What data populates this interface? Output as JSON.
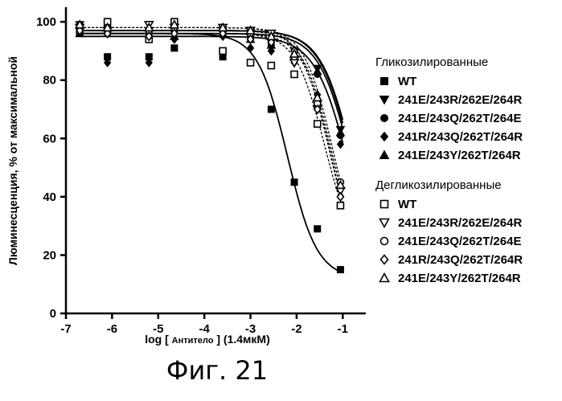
{
  "caption": "Фиг. 21",
  "chart_data": {
    "type": "scatter",
    "title": "",
    "xlabel_main": "log [ ",
    "xlabel_small": "Антитело",
    "xlabel_end": " ] (1.4мкМ)",
    "ylabel": "Люминесценция, % от максимальной",
    "xlim": [
      -7,
      -0.5
    ],
    "ylim": [
      0,
      105
    ],
    "xticks": [
      -7,
      -6,
      -5,
      -4,
      -3,
      -2,
      -1
    ],
    "xtick_labels": [
      "-7",
      "-6",
      "-5",
      "-4",
      "-3",
      "-2",
      "-1"
    ],
    "yticks": [
      0,
      20,
      40,
      60,
      80,
      100
    ],
    "ytick_labels": [
      "0",
      "20",
      "40",
      "60",
      "80",
      "100"
    ],
    "groups": [
      {
        "title": "Гликозилированные",
        "filled": true
      },
      {
        "title": "Дегликозилированные",
        "filled": false
      }
    ],
    "series": [
      {
        "name": "WT",
        "group": 0,
        "marker": "square",
        "filled": true,
        "line": "solid",
        "x": [
          -6.7,
          -6.1,
          -5.2,
          -4.65,
          -3.6,
          -3.0,
          -2.55,
          -2.05,
          -1.55,
          -1.05
        ],
        "y": [
          96,
          88,
          88,
          91,
          88,
          86,
          70,
          45,
          29,
          15
        ],
        "fit": {
          "top": 96,
          "bottom": 12,
          "ec50": -2.2,
          "hill": 1.35
        }
      },
      {
        "name": "241E/243R/262E/264R",
        "group": 0,
        "marker": "triangle-down",
        "filled": true,
        "line": "solid",
        "x": [
          -6.7,
          -6.1,
          -5.2,
          -4.65,
          -3.6,
          -3.0,
          -2.55,
          -2.05,
          -1.55,
          -1.05
        ],
        "y": [
          99,
          96,
          97,
          96,
          97,
          96,
          93,
          90,
          84,
          63
        ],
        "fit": {
          "top": 97,
          "bottom": 0,
          "ec50": -0.72,
          "hill": 1.2
        }
      },
      {
        "name": "241E/243Q/262T/264E",
        "group": 0,
        "marker": "circle",
        "filled": true,
        "line": "solid",
        "x": [
          -6.7,
          -6.1,
          -5.2,
          -4.65,
          -3.6,
          -3.0,
          -2.55,
          -2.05,
          -1.55,
          -1.05
        ],
        "y": [
          98,
          96,
          97,
          97,
          97,
          95,
          92,
          88,
          82,
          61
        ],
        "fit": {
          "top": 97,
          "bottom": 0,
          "ec50": -0.74,
          "hill": 1.2
        }
      },
      {
        "name": "241R/243Q/262T/264R",
        "group": 0,
        "marker": "diamond",
        "filled": true,
        "line": "solid",
        "x": [
          -6.7,
          -6.1,
          -5.2,
          -4.65,
          -3.6,
          -3.0,
          -2.55,
          -2.05,
          -1.55,
          -1.05
        ],
        "y": [
          97,
          86,
          86,
          94,
          95,
          91,
          90,
          86,
          75,
          58
        ],
        "fit": {
          "top": 95,
          "bottom": 0,
          "ec50": -0.82,
          "hill": 1.15
        }
      },
      {
        "name": "241E/243Y/262T/264R",
        "group": 0,
        "marker": "triangle-up",
        "filled": true,
        "line": "solid",
        "x": [
          -6.7,
          -6.1,
          -5.2,
          -4.65,
          -3.6,
          -3.0,
          -2.55,
          -2.05,
          -1.55,
          -1.05
        ],
        "y": [
          96,
          97,
          96,
          95,
          96,
          94,
          92,
          88,
          83,
          62
        ],
        "fit": {
          "top": 96,
          "bottom": 0,
          "ec50": -0.76,
          "hill": 1.2
        }
      },
      {
        "name": "WT",
        "group": 1,
        "marker": "square",
        "filled": false,
        "line": "dashed",
        "x": [
          -6.7,
          -6.1,
          -5.2,
          -4.65,
          -3.6,
          -3.0,
          -2.55,
          -2.05,
          -1.55,
          -1.05
        ],
        "y": [
          97,
          100,
          94,
          100,
          90,
          86,
          85,
          82,
          65,
          37
        ],
        "fit": {
          "top": 96,
          "bottom": 20,
          "ec50": -1.4,
          "hill": 1.4
        }
      },
      {
        "name": "241E/243R/262E/264R",
        "group": 1,
        "marker": "triangle-down",
        "filled": false,
        "line": "dashed",
        "x": [
          -6.7,
          -6.1,
          -5.2,
          -4.65,
          -3.6,
          -3.0,
          -2.55,
          -2.05,
          -1.55,
          -1.05
        ],
        "y": [
          98,
          97,
          99,
          98,
          98,
          97,
          96,
          86,
          70,
          42
        ],
        "fit": {
          "top": 98,
          "bottom": 15,
          "ec50": -1.3,
          "hill": 1.4
        }
      },
      {
        "name": "241E/243Q/262T/264E",
        "group": 1,
        "marker": "circle",
        "filled": false,
        "line": "dashed",
        "x": [
          -6.7,
          -6.1,
          -5.2,
          -4.65,
          -3.6,
          -3.0,
          -2.55,
          -2.05,
          -1.55,
          -1.05
        ],
        "y": [
          98,
          98,
          97,
          98,
          97,
          96,
          94,
          88,
          72,
          45
        ],
        "fit": {
          "top": 97,
          "bottom": 15,
          "ec50": -1.25,
          "hill": 1.4
        }
      },
      {
        "name": "241R/243Q/262T/264R",
        "group": 1,
        "marker": "diamond",
        "filled": false,
        "line": "dashed",
        "x": [
          -6.7,
          -6.1,
          -5.2,
          -4.65,
          -3.6,
          -3.0,
          -2.55,
          -2.05,
          -1.55,
          -1.05
        ],
        "y": [
          97,
          96,
          95,
          96,
          96,
          94,
          93,
          90,
          70,
          40
        ],
        "fit": {
          "top": 96,
          "bottom": 12,
          "ec50": -1.25,
          "hill": 1.4
        }
      },
      {
        "name": "241E/243Y/262T/264R",
        "group": 1,
        "marker": "triangle-up",
        "filled": false,
        "line": "dashed",
        "x": [
          -6.7,
          -6.1,
          -5.2,
          -4.65,
          -3.6,
          -3.0,
          -2.55,
          -2.05,
          -1.55,
          -1.05
        ],
        "y": [
          99,
          98,
          98,
          99,
          98,
          97,
          95,
          89,
          74,
          44
        ],
        "fit": {
          "top": 98,
          "bottom": 15,
          "ec50": -1.22,
          "hill": 1.4
        }
      }
    ]
  }
}
